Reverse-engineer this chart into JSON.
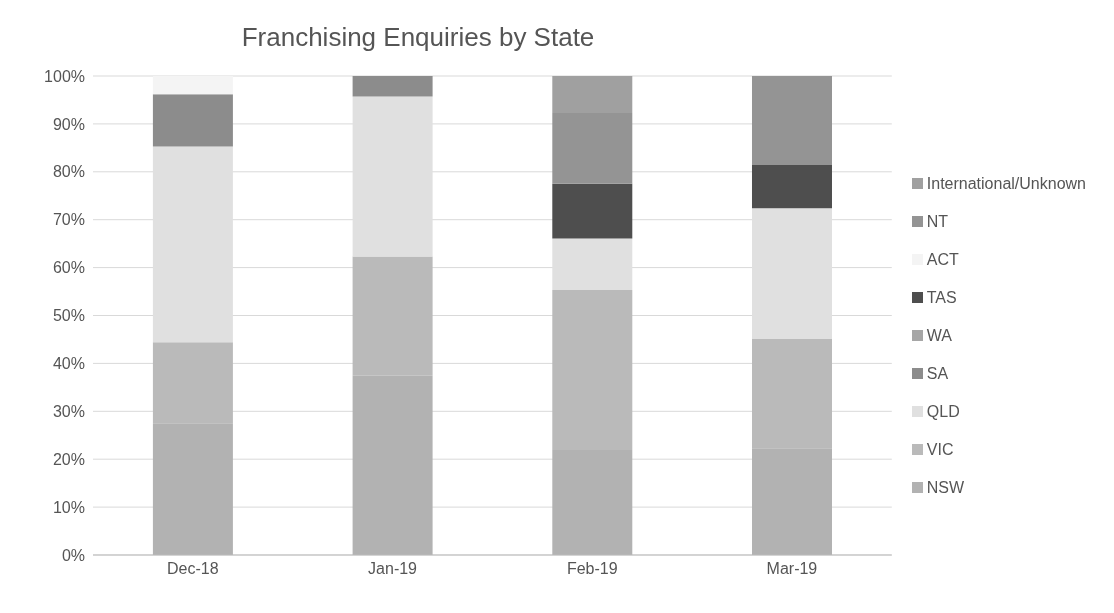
{
  "chart_data": {
    "type": "bar",
    "title": "Franchising Enquiries by State",
    "stacked": true,
    "grid": "y",
    "legend": "right",
    "categories": [
      "Dec-18",
      "Jan-19",
      "Feb-19",
      "Mar-19"
    ],
    "series": [
      {
        "name": "NSW",
        "color": "#b2b2b2",
        "values": [
          27.5,
          37.4,
          21.9,
          22.3
        ]
      },
      {
        "name": "VIC",
        "color": "#bababa",
        "values": [
          16.9,
          24.9,
          33.4,
          22.8
        ]
      },
      {
        "name": "QLD",
        "color": "#e0e0e0",
        "values": [
          40.9,
          33.4,
          10.8,
          27.3
        ]
      },
      {
        "name": "SA",
        "color": "#8c8c8c",
        "values": [
          10.9,
          4.3,
          null,
          null
        ]
      },
      {
        "name": "WA",
        "color": "#a6a6a6",
        "values": [
          null,
          null,
          null,
          null
        ]
      },
      {
        "name": "TAS",
        "color": "#4e4e4e",
        "values": [
          null,
          null,
          11.4,
          9.0
        ]
      },
      {
        "name": "ACT",
        "color": "#f4f4f4",
        "values": [
          3.8,
          null,
          null,
          null
        ]
      },
      {
        "name": "NT",
        "color": "#949494",
        "values": [
          null,
          null,
          14.8,
          18.6
        ]
      },
      {
        "name": "International/Unknown",
        "color": "#a0a0a0",
        "values": [
          null,
          null,
          7.7,
          null
        ]
      }
    ],
    "ylim": [
      0,
      100
    ],
    "yticks": [
      {
        "value": 0,
        "label": "0%"
      },
      {
        "value": 10,
        "label": "10%"
      },
      {
        "value": 20,
        "label": "20%"
      },
      {
        "value": 30,
        "label": "30%"
      },
      {
        "value": 40,
        "label": "40%"
      },
      {
        "value": 50,
        "label": "50%"
      },
      {
        "value": 60,
        "label": "60%"
      },
      {
        "value": 70,
        "label": "70%"
      },
      {
        "value": 80,
        "label": "80%"
      },
      {
        "value": 90,
        "label": "90%"
      },
      {
        "value": 100,
        "label": "100%"
      }
    ]
  }
}
